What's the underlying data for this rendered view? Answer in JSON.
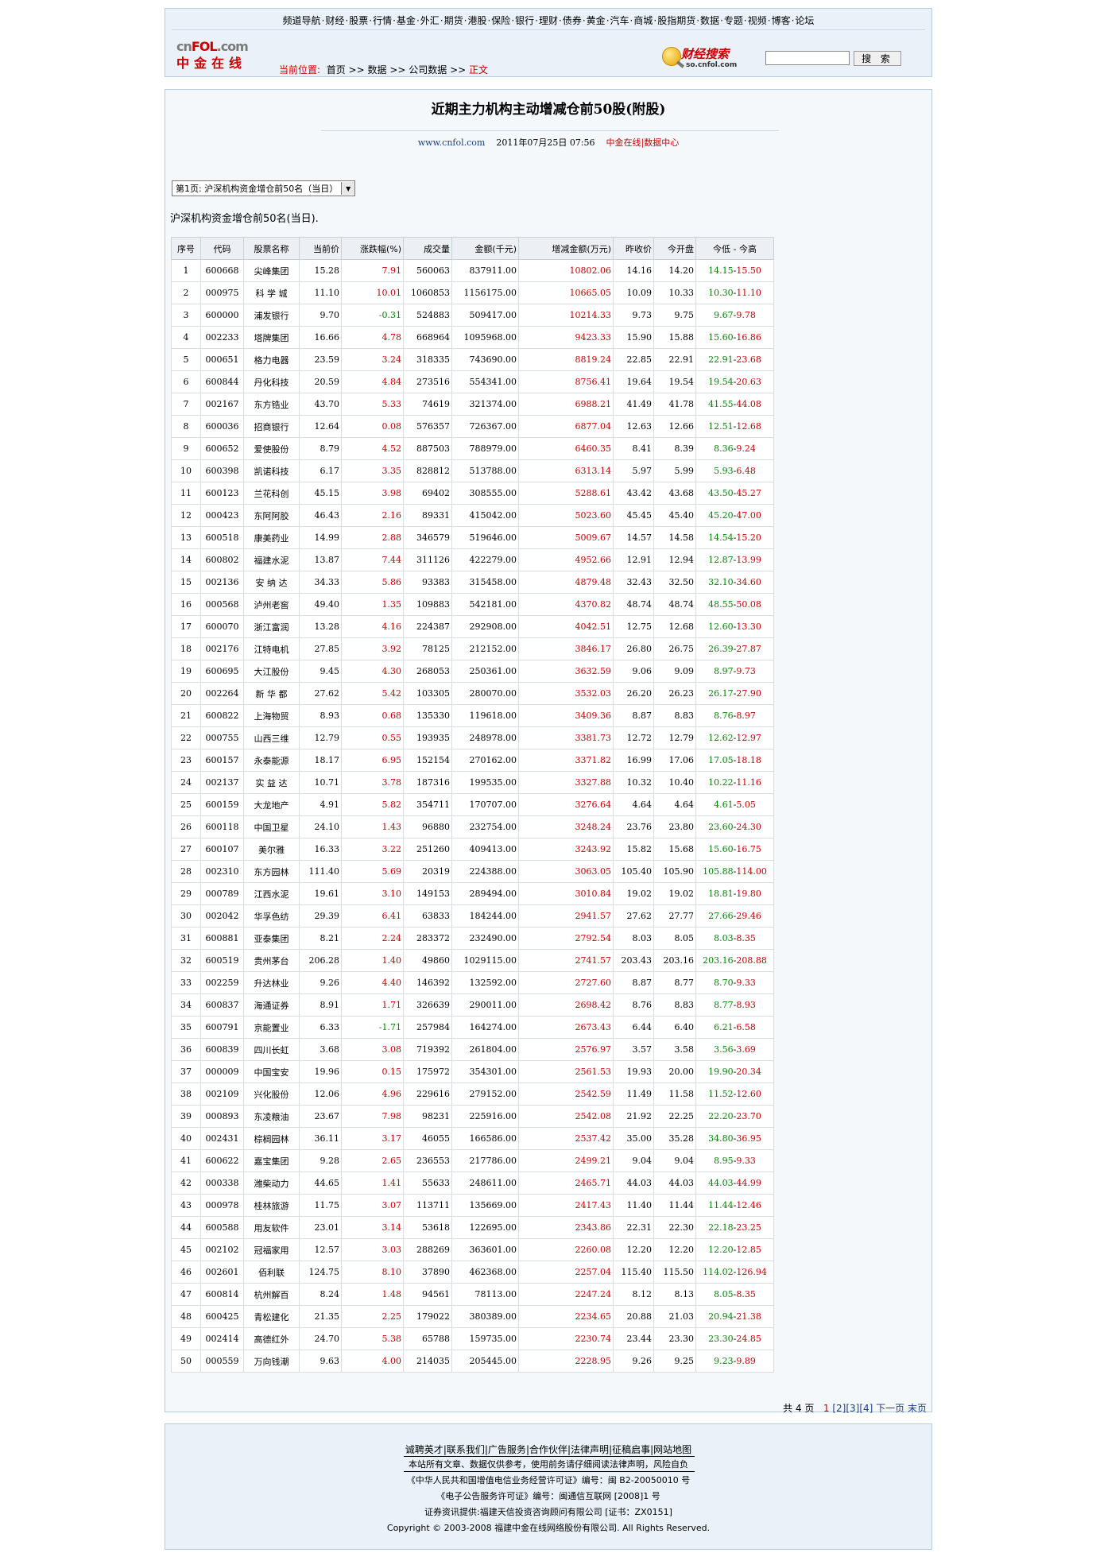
{
  "nav": [
    "频道导航",
    "财经",
    "股票",
    "行情",
    "基金",
    "外汇",
    "期货",
    "港股",
    "保险",
    "银行",
    "理财",
    "债券",
    "黄金",
    "汽车",
    "商城",
    "股指期货",
    "数据",
    "专题",
    "视频",
    "博客",
    "论坛"
  ],
  "logo": {
    "top_a": "cn",
    "top_b": "FOL",
    "top_c": ".com",
    "cn": "中金在线"
  },
  "breadcrumb": {
    "label": "当前位置:",
    "items": [
      "首页",
      "数据",
      "公司数据"
    ],
    "sep": ">>",
    "current": "正文"
  },
  "search": {
    "logo_text": "财经搜索",
    "logo_sub": "so.cnfol.com",
    "button": "搜 索"
  },
  "article": {
    "title": "近期主力机构主动增减仓前50股(附股)",
    "site": "www.cnfol.com",
    "datetime": "2011年07月25日 07:56",
    "source": "中金在线|数据中心",
    "select_value": "第1页: 沪深机构资金增仓前50名（当日）",
    "caption": "沪深机构资金增仓前50名(当日)."
  },
  "table": {
    "headers": [
      "序号",
      "代码",
      "股票名称",
      "当前价",
      "涨跌幅(%)",
      "成交量",
      "金额(千元)",
      "增减金额(万元)",
      "昨收价",
      "今开盘",
      "今低 - 今高"
    ],
    "rows": [
      [
        "1",
        "600668",
        "尖峰集团",
        "15.28",
        "7.91",
        "560063",
        "837911.00",
        "10802.06",
        "14.16",
        "14.20",
        "14.15",
        "15.50"
      ],
      [
        "2",
        "000975",
        "科 学 城",
        "11.10",
        "10.01",
        "1060853",
        "1156175.00",
        "10665.05",
        "10.09",
        "10.33",
        "10.30",
        "11.10"
      ],
      [
        "3",
        "600000",
        "浦发银行",
        "9.70",
        "-0.31",
        "524883",
        "509417.00",
        "10214.33",
        "9.73",
        "9.75",
        "9.67",
        "9.78"
      ],
      [
        "4",
        "002233",
        "塔牌集团",
        "16.66",
        "4.78",
        "668964",
        "1095968.00",
        "9423.33",
        "15.90",
        "15.88",
        "15.60",
        "16.86"
      ],
      [
        "5",
        "000651",
        "格力电器",
        "23.59",
        "3.24",
        "318335",
        "743690.00",
        "8819.24",
        "22.85",
        "22.91",
        "22.91",
        "23.68"
      ],
      [
        "6",
        "600844",
        "丹化科技",
        "20.59",
        "4.84",
        "273516",
        "554341.00",
        "8756.41",
        "19.64",
        "19.54",
        "19.54",
        "20.63"
      ],
      [
        "7",
        "002167",
        "东方锆业",
        "43.70",
        "5.33",
        "74619",
        "321374.00",
        "6988.21",
        "41.49",
        "41.78",
        "41.55",
        "44.08"
      ],
      [
        "8",
        "600036",
        "招商银行",
        "12.64",
        "0.08",
        "576357",
        "726367.00",
        "6877.04",
        "12.63",
        "12.66",
        "12.51",
        "12.68"
      ],
      [
        "9",
        "600652",
        "爱使股份",
        "8.79",
        "4.52",
        "887503",
        "788979.00",
        "6460.35",
        "8.41",
        "8.39",
        "8.36",
        "9.24"
      ],
      [
        "10",
        "600398",
        "凯诺科技",
        "6.17",
        "3.35",
        "828812",
        "513788.00",
        "6313.14",
        "5.97",
        "5.99",
        "5.93",
        "6.48"
      ],
      [
        "11",
        "600123",
        "兰花科创",
        "45.15",
        "3.98",
        "69402",
        "308555.00",
        "5288.61",
        "43.42",
        "43.68",
        "43.50",
        "45.27"
      ],
      [
        "12",
        "000423",
        "东阿阿胶",
        "46.43",
        "2.16",
        "89331",
        "415042.00",
        "5023.60",
        "45.45",
        "45.40",
        "45.20",
        "47.00"
      ],
      [
        "13",
        "600518",
        "康美药业",
        "14.99",
        "2.88",
        "346579",
        "519646.00",
        "5009.67",
        "14.57",
        "14.58",
        "14.54",
        "15.20"
      ],
      [
        "14",
        "600802",
        "福建水泥",
        "13.87",
        "7.44",
        "311126",
        "422279.00",
        "4952.66",
        "12.91",
        "12.94",
        "12.87",
        "13.99"
      ],
      [
        "15",
        "002136",
        "安 纳 达",
        "34.33",
        "5.86",
        "93383",
        "315458.00",
        "4879.48",
        "32.43",
        "32.50",
        "32.10",
        "34.60"
      ],
      [
        "16",
        "000568",
        "泸州老窖",
        "49.40",
        "1.35",
        "109883",
        "542181.00",
        "4370.82",
        "48.74",
        "48.74",
        "48.55",
        "50.08"
      ],
      [
        "17",
        "600070",
        "浙江富润",
        "13.28",
        "4.16",
        "224387",
        "292908.00",
        "4042.51",
        "12.75",
        "12.68",
        "12.60",
        "13.30"
      ],
      [
        "18",
        "002176",
        "江特电机",
        "27.85",
        "3.92",
        "78125",
        "212152.00",
        "3846.17",
        "26.80",
        "26.75",
        "26.39",
        "27.87"
      ],
      [
        "19",
        "600695",
        "大江股份",
        "9.45",
        "4.30",
        "268053",
        "250361.00",
        "3632.59",
        "9.06",
        "9.09",
        "8.97",
        "9.73"
      ],
      [
        "20",
        "002264",
        "新 华 都",
        "27.62",
        "5.42",
        "103305",
        "280070.00",
        "3532.03",
        "26.20",
        "26.23",
        "26.17",
        "27.90"
      ],
      [
        "21",
        "600822",
        "上海物贸",
        "8.93",
        "0.68",
        "135330",
        "119618.00",
        "3409.36",
        "8.87",
        "8.83",
        "8.76",
        "8.97"
      ],
      [
        "22",
        "000755",
        "山西三维",
        "12.79",
        "0.55",
        "193935",
        "248978.00",
        "3381.73",
        "12.72",
        "12.79",
        "12.62",
        "12.97"
      ],
      [
        "23",
        "600157",
        "永泰能源",
        "18.17",
        "6.95",
        "152154",
        "270162.00",
        "3371.82",
        "16.99",
        "17.06",
        "17.05",
        "18.18"
      ],
      [
        "24",
        "002137",
        "实 益 达",
        "10.71",
        "3.78",
        "187316",
        "199535.00",
        "3327.88",
        "10.32",
        "10.40",
        "10.22",
        "11.16"
      ],
      [
        "25",
        "600159",
        "大龙地产",
        "4.91",
        "5.82",
        "354711",
        "170707.00",
        "3276.64",
        "4.64",
        "4.64",
        "4.61",
        "5.05"
      ],
      [
        "26",
        "600118",
        "中国卫星",
        "24.10",
        "1.43",
        "96880",
        "232754.00",
        "3248.24",
        "23.76",
        "23.80",
        "23.60",
        "24.30"
      ],
      [
        "27",
        "600107",
        "美尔雅",
        "16.33",
        "3.22",
        "251260",
        "409413.00",
        "3243.92",
        "15.82",
        "15.68",
        "15.60",
        "16.75"
      ],
      [
        "28",
        "002310",
        "东方园林",
        "111.40",
        "5.69",
        "20319",
        "224388.00",
        "3063.05",
        "105.40",
        "105.90",
        "105.88",
        "114.00"
      ],
      [
        "29",
        "000789",
        "江西水泥",
        "19.61",
        "3.10",
        "149153",
        "289494.00",
        "3010.84",
        "19.02",
        "19.02",
        "18.81",
        "19.80"
      ],
      [
        "30",
        "002042",
        "华孚色纺",
        "29.39",
        "6.41",
        "63833",
        "184244.00",
        "2941.57",
        "27.62",
        "27.77",
        "27.66",
        "29.46"
      ],
      [
        "31",
        "600881",
        "亚泰集团",
        "8.21",
        "2.24",
        "283372",
        "232490.00",
        "2792.54",
        "8.03",
        "8.05",
        "8.03",
        "8.35"
      ],
      [
        "32",
        "600519",
        "贵州茅台",
        "206.28",
        "1.40",
        "49860",
        "1029115.00",
        "2741.57",
        "203.43",
        "203.16",
        "203.16",
        "208.88"
      ],
      [
        "33",
        "002259",
        "升达林业",
        "9.26",
        "4.40",
        "146392",
        "132592.00",
        "2727.60",
        "8.87",
        "8.77",
        "8.70",
        "9.33"
      ],
      [
        "34",
        "600837",
        "海通证券",
        "8.91",
        "1.71",
        "326639",
        "290011.00",
        "2698.42",
        "8.76",
        "8.83",
        "8.77",
        "8.93"
      ],
      [
        "35",
        "600791",
        "京能置业",
        "6.33",
        "-1.71",
        "257984",
        "164274.00",
        "2673.43",
        "6.44",
        "6.40",
        "6.21",
        "6.58"
      ],
      [
        "36",
        "600839",
        "四川长虹",
        "3.68",
        "3.08",
        "719392",
        "261804.00",
        "2576.97",
        "3.57",
        "3.58",
        "3.56",
        "3.69"
      ],
      [
        "37",
        "000009",
        "中国宝安",
        "19.96",
        "0.15",
        "175972",
        "354301.00",
        "2561.53",
        "19.93",
        "20.00",
        "19.90",
        "20.34"
      ],
      [
        "38",
        "002109",
        "兴化股份",
        "12.06",
        "4.96",
        "229616",
        "279152.00",
        "2542.59",
        "11.49",
        "11.58",
        "11.52",
        "12.60"
      ],
      [
        "39",
        "000893",
        "东凌粮油",
        "23.67",
        "7.98",
        "98231",
        "225916.00",
        "2542.08",
        "21.92",
        "22.25",
        "22.20",
        "23.70"
      ],
      [
        "40",
        "002431",
        "棕榈园林",
        "36.11",
        "3.17",
        "46055",
        "166586.00",
        "2537.42",
        "35.00",
        "35.28",
        "34.80",
        "36.95"
      ],
      [
        "41",
        "600622",
        "嘉宝集团",
        "9.28",
        "2.65",
        "236553",
        "217786.00",
        "2499.21",
        "9.04",
        "9.04",
        "8.95",
        "9.33"
      ],
      [
        "42",
        "000338",
        "潍柴动力",
        "44.65",
        "1.41",
        "55633",
        "248611.00",
        "2465.71",
        "44.03",
        "44.03",
        "44.03",
        "44.99"
      ],
      [
        "43",
        "000978",
        "桂林旅游",
        "11.75",
        "3.07",
        "113711",
        "135669.00",
        "2417.43",
        "11.40",
        "11.44",
        "11.44",
        "12.46"
      ],
      [
        "44",
        "600588",
        "用友软件",
        "23.01",
        "3.14",
        "53618",
        "122695.00",
        "2343.86",
        "22.31",
        "22.30",
        "22.18",
        "23.25"
      ],
      [
        "45",
        "002102",
        "冠福家用",
        "12.57",
        "3.03",
        "288269",
        "363601.00",
        "2260.08",
        "12.20",
        "12.20",
        "12.20",
        "12.85"
      ],
      [
        "46",
        "002601",
        "佰利联",
        "124.75",
        "8.10",
        "37890",
        "462368.00",
        "2257.04",
        "115.40",
        "115.50",
        "114.02",
        "126.94"
      ],
      [
        "47",
        "600814",
        "杭州解百",
        "8.24",
        "1.48",
        "94561",
        "78113.00",
        "2247.24",
        "8.12",
        "8.13",
        "8.05",
        "8.35"
      ],
      [
        "48",
        "600425",
        "青松建化",
        "21.35",
        "2.25",
        "179022",
        "380389.00",
        "2234.65",
        "20.88",
        "21.03",
        "20.94",
        "21.38"
      ],
      [
        "49",
        "002414",
        "高德红外",
        "24.70",
        "5.38",
        "65788",
        "159735.00",
        "2230.74",
        "23.44",
        "23.30",
        "23.30",
        "24.85"
      ],
      [
        "50",
        "000559",
        "万向钱潮",
        "9.63",
        "4.00",
        "214035",
        "205445.00",
        "2228.95",
        "9.26",
        "9.25",
        "9.23",
        "9.89"
      ]
    ]
  },
  "pager": {
    "total": "共 4 页",
    "current": "1",
    "pages": [
      "[2]",
      "[3]",
      "[4]"
    ],
    "next": "下一页",
    "last": "末页"
  },
  "footer": {
    "links": [
      "诚聘英才",
      "联系我们",
      "广告服务",
      "合作伙伴",
      "法律声明",
      "征稿启事",
      "网站地图"
    ],
    "lines": [
      "本站所有文章、数据仅供参考，使用前务请仔细阅读法律声明，风险自负",
      "《中华人民共和国增值电信业务经营许可证》编号：闽 B2-20050010 号",
      "《电子公告服务许可证》编号：闽通信互联网 [2008]1 号",
      "证券资讯提供:福建天信投资咨询顾问有限公司 [证书：ZX0151]",
      "Copyright © 2003-2008 福建中金在线网络股份有限公司. All Rights Reserved."
    ]
  }
}
